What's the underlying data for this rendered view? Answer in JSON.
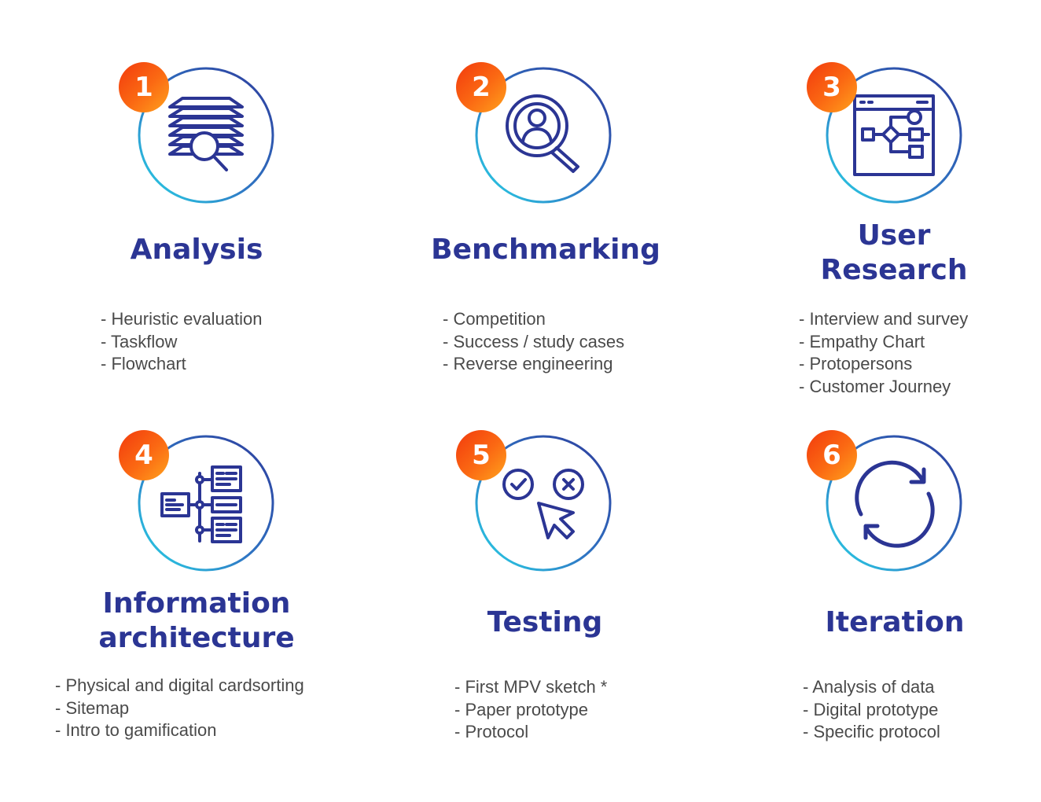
{
  "colors": {
    "navy": "#2b3594",
    "text": "#4a4a4a",
    "badge_start": "#f23a0d",
    "badge_end": "#ffa21d",
    "ring_start": "#2d3a9b",
    "ring_end": "#28d7e8"
  },
  "steps": [
    {
      "number": "1",
      "title_line1": "Analysis",
      "title_line2": "",
      "icon": "layers-magnifier-icon",
      "items": [
        "- Heuristic evaluation",
        "- Taskflow",
        "- Flowchart"
      ]
    },
    {
      "number": "2",
      "title_line1": "Benchmarking",
      "title_line2": "",
      "icon": "user-search-icon",
      "items": [
        "- Competition",
        "- Success / study cases",
        "- Reverse engineering"
      ]
    },
    {
      "number": "3",
      "title_line1": "User",
      "title_line2": "Research",
      "icon": "browser-flowchart-icon",
      "items": [
        "- Interview and survey",
        "- Empathy Chart",
        "- Protopersons",
        "- Customer Journey"
      ]
    },
    {
      "number": "4",
      "title_line1": "Information",
      "title_line2": "architecture",
      "icon": "sitemap-icon",
      "items": [
        "- Physical and digital cardsorting",
        "- Sitemap",
        "- Intro to gamification"
      ]
    },
    {
      "number": "5",
      "title_line1": "Testing",
      "title_line2": "",
      "icon": "check-cross-cursor-icon",
      "items": [
        "- First MPV sketch *",
        "- Paper prototype",
        "- Protocol"
      ]
    },
    {
      "number": "6",
      "title_line1": "Iteration",
      "title_line2": "",
      "icon": "refresh-cycle-icon",
      "items": [
        "- Analysis of data",
        "- Digital prototype",
        "- Specific protocol"
      ]
    }
  ]
}
